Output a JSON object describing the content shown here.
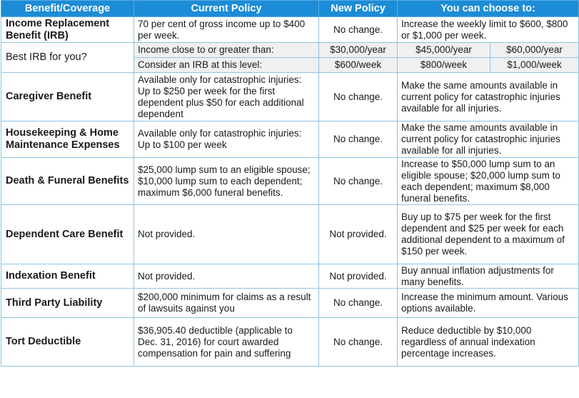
{
  "headers": {
    "benefit": "Benefit/Coverage",
    "current": "Current Policy",
    "new": "New Policy",
    "choose": "You can choose to:"
  },
  "irb": {
    "name": "Income Replacement Benefit (IRB)",
    "current": "70 per cent of gross income up to $400 per week.",
    "new": "No change.",
    "choose": "Increase the weekly limit to $600, $800 or $1,000 per week."
  },
  "best_irb": {
    "label": "Best IRB for you?",
    "income_label": "Income close to or greater than:",
    "income_values": [
      "$30,000/year",
      "$45,000/year",
      "$60,000/year"
    ],
    "level_label": "Consider an IRB at this level:",
    "level_values": [
      "$600/week",
      "$800/week",
      "$1,000/week"
    ]
  },
  "rows": [
    {
      "name": "Caregiver Benefit",
      "current": "Available only for catastrophic injuries: Up to $250 per week for the first dependent plus $50 for each additional dependent",
      "new": "No change.",
      "choose": "Make the same amounts available in current policy for catastrophic injuries available for all injuries."
    },
    {
      "name": "Housekeeping & Home Maintenance Expenses",
      "current": "Available only for catastrophic injuries: Up to $100 per week",
      "new": "No change.",
      "choose": "Make the same amounts available in current policy for catastrophic injuries available for all injuries."
    },
    {
      "name": "Death & Funeral Benefits",
      "current": "$25,000 lump sum to an eligible spouse; $10,000 lump sum to each dependent; maximum $6,000 funeral benefits.",
      "new": "No change.",
      "choose": "Increase to $50,000 lump sum to an eligible spouse; $20,000 lump sum to each dependent; maximum $8,000 funeral benefits."
    },
    {
      "name": "Dependent Care Benefit",
      "current": "Not provided.",
      "new": "Not provided.",
      "choose": "Buy up to $75 per week for the first dependent and $25 per week for each additional dependent to a maximum of $150 per week."
    },
    {
      "name": "Indexation Benefit",
      "current": "Not provided.",
      "new": "Not provided.",
      "choose": "Buy annual inflation adjustments for many benefits."
    },
    {
      "name": "Third Party Liability",
      "current": "$200,000 minimum for claims as a result of lawsuits against you",
      "new": "No change.",
      "choose": "Increase the minimum amount. Various options available."
    },
    {
      "name": "Tort Deductible",
      "current": "$36,905.40 deductible (applicable to Dec. 31, 2016) for court awarded compensation for pain and suffering",
      "new": "No change.",
      "choose": "Reduce deductible by $10,000 regardless of annual indexation percentage increases."
    }
  ]
}
